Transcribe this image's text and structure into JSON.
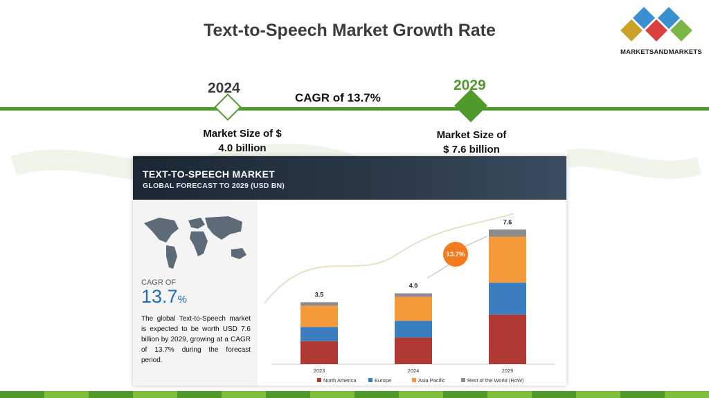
{
  "header": {
    "title": "Text-to-Speech Market Growth Rate",
    "logo_text": "MARKETSANDMARKETS"
  },
  "timeline": {
    "start_year": "2024",
    "end_year": "2029",
    "cagr_text": "CAGR of 13.7%",
    "start_market_line1": "Market Size of $",
    "start_market_line2": "4.0 billion",
    "end_market_line1": "Market Size of",
    "end_market_line2": "$ 7.6 billion"
  },
  "infographic": {
    "title": "TEXT-TO-SPEECH MARKET",
    "subtitle": "GLOBAL FORECAST TO 2029 (USD BN)",
    "cagr_label": "CAGR OF",
    "cagr_value": "13.7",
    "cagr_unit": "%",
    "description": "The global Text-to-Speech market is expected to be worth USD 7.6 billion by 2029, growing at a CAGR of 13.7% during the forecast period.",
    "badge_value": "13.7",
    "badge_unit": "%"
  },
  "colors": {
    "brand_green": "#4f9a2b",
    "north_america": "#b03a33",
    "europe": "#3a7ebf",
    "asia_pacific": "#f49a3a",
    "rest_of_world": "#8c8c8c",
    "badge": "#f47a20"
  },
  "chart_data": {
    "type": "bar",
    "stacked": true,
    "categories": [
      "2023",
      "2024",
      "2029"
    ],
    "totals": [
      "3.5",
      "4.0",
      "7.6"
    ],
    "series": [
      {
        "name": "North America",
        "values": [
          1.3,
          1.5,
          2.8
        ]
      },
      {
        "name": "Europe",
        "values": [
          0.8,
          0.95,
          1.8
        ]
      },
      {
        "name": "Asia Pacific",
        "values": [
          1.2,
          1.35,
          2.6
        ]
      },
      {
        "name": "Rest of the World (RoW)",
        "values": [
          0.2,
          0.2,
          0.4
        ]
      }
    ],
    "ylim": [
      0,
      8
    ],
    "legend_position": "bottom"
  }
}
